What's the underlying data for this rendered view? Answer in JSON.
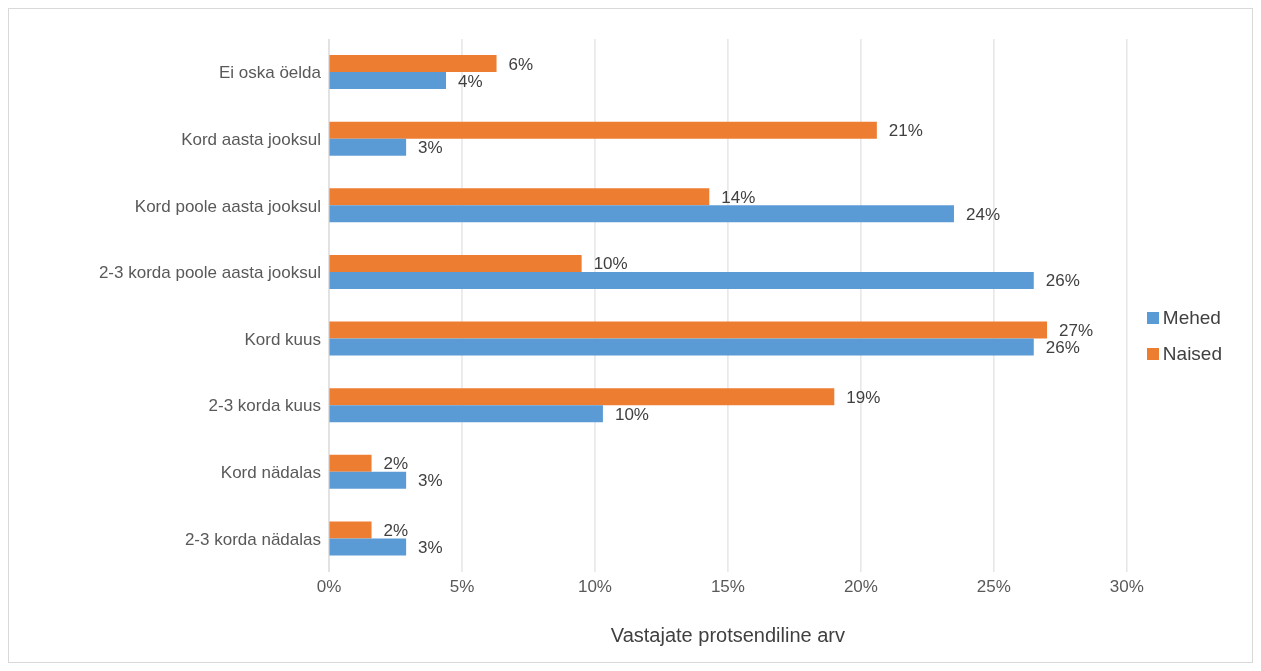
{
  "chart_data": {
    "type": "bar",
    "orientation": "horizontal",
    "xlabel": "Vastajate protsendiline arv",
    "categories": [
      "Ei oska öelda",
      "Kord aasta jooksul",
      "Kord poole aasta jooksul",
      "2-3 korda poole aasta jooksul",
      "Kord kuus",
      "2-3 korda kuus",
      "Kord nädalas",
      "2-3 korda nädalas"
    ],
    "series": [
      {
        "name": "Naised",
        "color": "#ed7d31",
        "values": [
          6.3,
          20.6,
          14.3,
          9.5,
          27.0,
          19.0,
          1.6,
          1.6
        ],
        "value_labels": [
          "6%",
          "21%",
          "14%",
          "10%",
          "27%",
          "19%",
          "2%",
          "2%"
        ]
      },
      {
        "name": "Mehed",
        "color": "#5b9bd5",
        "values": [
          4.4,
          2.9,
          23.5,
          26.5,
          26.5,
          10.3,
          2.9,
          2.9
        ],
        "value_labels": [
          "4%",
          "3%",
          "24%",
          "26%",
          "26%",
          "10%",
          "3%",
          "3%"
        ]
      }
    ],
    "xlim": [
      0,
      30
    ],
    "xticks": [
      {
        "value": 0,
        "label": "0%"
      },
      {
        "value": 5,
        "label": "5%"
      },
      {
        "value": 10,
        "label": "10%"
      },
      {
        "value": 15,
        "label": "15%"
      },
      {
        "value": 20,
        "label": "20%"
      },
      {
        "value": 25,
        "label": "25%"
      },
      {
        "value": 30,
        "label": "30%"
      }
    ],
    "grid": "x",
    "legend": "right"
  }
}
